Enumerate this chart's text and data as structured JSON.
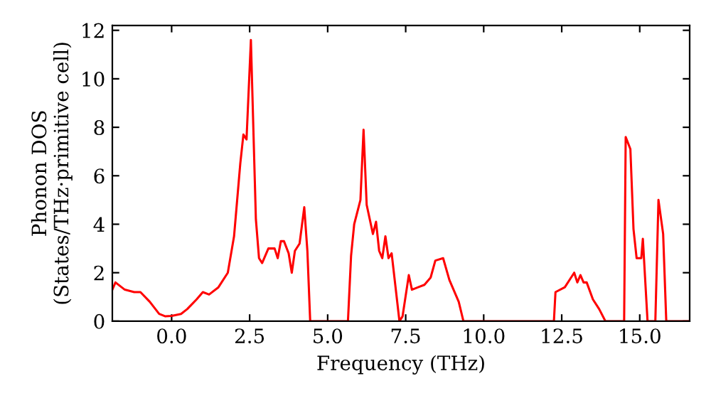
{
  "chart_data": {
    "type": "line",
    "xlabel": "Frequency (THz)",
    "ylabel": "Phonon DOS\n(States/THz·primitive cell)",
    "xlim": [
      -1.9,
      16.6
    ],
    "ylim": [
      0,
      12.2
    ],
    "xticks": [
      {
        "value": 0,
        "label": "0.0"
      },
      {
        "value": 2.5,
        "label": "2.5"
      },
      {
        "value": 5,
        "label": "5.0"
      },
      {
        "value": 7.5,
        "label": "7.5"
      },
      {
        "value": 10,
        "label": "10.0"
      },
      {
        "value": 12.5,
        "label": "12.5"
      },
      {
        "value": 15,
        "label": "15.0"
      }
    ],
    "yticks": [
      0,
      2,
      4,
      6,
      8,
      10,
      12
    ],
    "grid": false,
    "marker": "none",
    "line_style": "solid",
    "series": [
      {
        "color": "#ff0000",
        "x": [
          -1.9,
          -1.8,
          -1.5,
          -1.2,
          -1.0,
          -0.7,
          -0.4,
          -0.2,
          0.0,
          0.3,
          0.5,
          0.8,
          1.0,
          1.2,
          1.5,
          1.8,
          2.0,
          2.2,
          2.3,
          2.4,
          2.54,
          2.7,
          2.8,
          2.9,
          3.1,
          3.3,
          3.4,
          3.5,
          3.6,
          3.75,
          3.85,
          3.95,
          4.1,
          4.25,
          4.35,
          4.44,
          5.65,
          5.75,
          5.85,
          6.05,
          6.15,
          6.25,
          6.45,
          6.55,
          6.65,
          6.75,
          6.85,
          6.95,
          7.05,
          7.3,
          7.4,
          7.6,
          7.7,
          7.9,
          8.1,
          8.3,
          8.45,
          8.7,
          8.9,
          9.2,
          9.35,
          12.25,
          12.3,
          12.6,
          12.8,
          12.9,
          13.0,
          13.1,
          13.2,
          13.3,
          13.5,
          13.7,
          13.9,
          14.5,
          14.55,
          14.7,
          14.8,
          14.9,
          15.05,
          15.1,
          15.25,
          15.5,
          15.6,
          15.75,
          15.85,
          16.6
        ],
        "values": [
          1.3,
          1.6,
          1.3,
          1.2,
          1.2,
          0.8,
          0.3,
          0.2,
          0.22,
          0.3,
          0.5,
          0.9,
          1.2,
          1.1,
          1.4,
          2.0,
          3.5,
          6.5,
          7.7,
          7.5,
          11.6,
          4.2,
          2.6,
          2.4,
          3.0,
          3.0,
          2.6,
          3.3,
          3.3,
          2.8,
          2.0,
          2.9,
          3.2,
          4.7,
          2.9,
          0,
          0,
          2.7,
          4.0,
          5.0,
          7.9,
          4.8,
          3.6,
          4.1,
          2.9,
          2.6,
          3.5,
          2.6,
          2.8,
          0,
          0.2,
          1.9,
          1.3,
          1.4,
          1.5,
          1.8,
          2.5,
          2.6,
          1.7,
          0.8,
          0,
          0,
          1.2,
          1.4,
          1.8,
          2.0,
          1.6,
          1.9,
          1.6,
          1.6,
          0.9,
          0.5,
          0,
          0,
          7.6,
          7.1,
          3.8,
          2.6,
          2.6,
          3.4,
          0,
          0,
          5.0,
          3.6,
          0,
          0
        ]
      }
    ]
  }
}
